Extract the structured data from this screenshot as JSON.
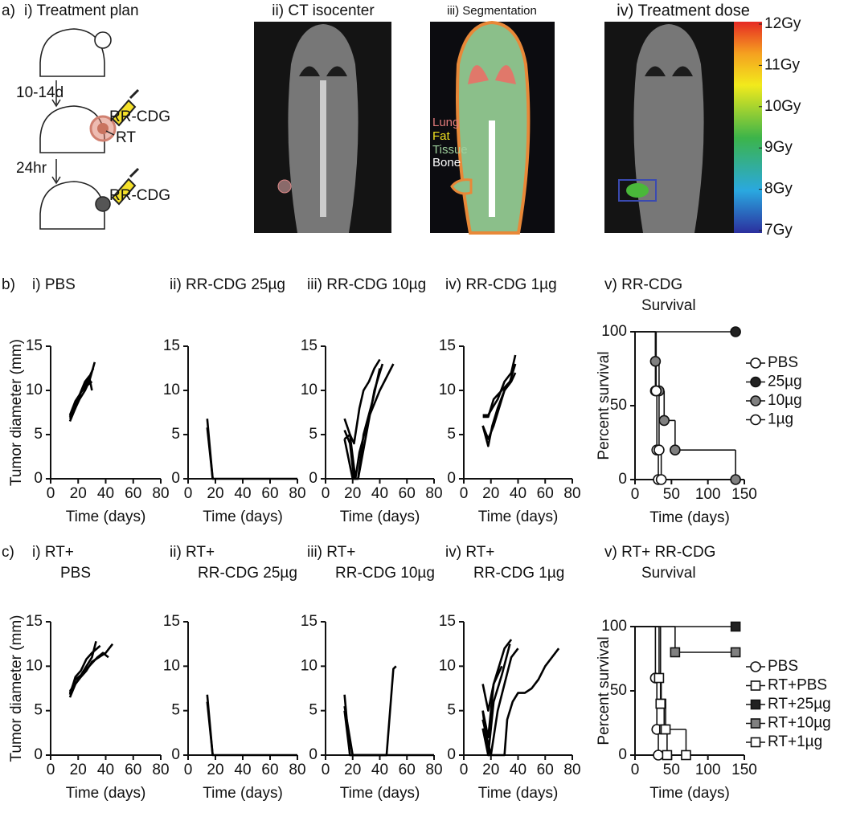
{
  "panel_a": {
    "label": "a)",
    "plan": {
      "title": "i) Treatment plan",
      "step1": "10-14d",
      "drug1": "RR-CDG",
      "rt": "RT",
      "step2": "24hr",
      "drug2": "RR-CDG"
    },
    "ct": {
      "title": "ii) CT isocenter"
    },
    "segmentation": {
      "title": "iii) Segmentation",
      "legend": [
        "Lung",
        "Fat",
        "Tissue",
        "Bone"
      ]
    },
    "dose": {
      "title": "iv) Treatment dose",
      "colorbar": {
        "lim": [
          7,
          12
        ],
        "ticks": [
          {
            "value": 12,
            "label": "12Gy"
          },
          {
            "value": 11,
            "label": "11Gy"
          },
          {
            "value": 10,
            "label": "10Gy"
          },
          {
            "value": 9,
            "label": "9Gy"
          },
          {
            "value": 8,
            "label": "8Gy"
          },
          {
            "value": 7,
            "label": "7Gy"
          }
        ]
      }
    }
  },
  "row_labels": [
    "b)",
    "c)"
  ],
  "chart_data": [
    {
      "type": "line",
      "title": [
        "i) PBS"
      ],
      "xlabel": "Time (days)",
      "ylabel": "Tumor diameter (mm)",
      "xlim": [
        0,
        80
      ],
      "xticks": [
        0,
        20,
        40,
        60,
        80
      ],
      "ylim": [
        0,
        15
      ],
      "yticks": [
        0,
        5,
        10,
        15
      ],
      "series": [
        {
          "color": "#000000",
          "x": [
            14,
            18,
            21,
            25,
            28,
            32
          ],
          "values": [
            6.5,
            8,
            9,
            10,
            11,
            13.2
          ]
        },
        {
          "color": "#000000",
          "x": [
            14,
            18,
            21,
            25,
            28,
            31
          ],
          "values": [
            7,
            8.5,
            9.5,
            10.5,
            11.5,
            12.5
          ]
        },
        {
          "color": "#000000",
          "x": [
            14,
            18,
            22,
            26,
            30
          ],
          "values": [
            6.8,
            8,
            9.8,
            10.5,
            11
          ]
        },
        {
          "color": "#000000",
          "x": [
            14,
            18,
            21,
            25,
            28,
            30
          ],
          "values": [
            7.2,
            8.8,
            9.5,
            11,
            11.6,
            10
          ]
        }
      ]
    },
    {
      "type": "line",
      "title": [
        "ii) RR-CDG 25µg"
      ],
      "xlabel": "Time (days)",
      "xlim": [
        0,
        80
      ],
      "xticks": [
        0,
        20,
        40,
        60,
        80
      ],
      "ylim": [
        0,
        15
      ],
      "yticks": [
        0,
        5,
        10,
        15
      ],
      "series": [
        {
          "color": "#000000",
          "x": [
            14,
            18,
            80
          ],
          "values": [
            6.8,
            0,
            0
          ]
        },
        {
          "color": "#000000",
          "x": [
            14,
            18
          ],
          "values": [
            5.8,
            0
          ]
        }
      ]
    },
    {
      "type": "line",
      "title": [
        "iii) RR-CDG 10µg"
      ],
      "xlabel": "Time (days)",
      "xlim": [
        0,
        80
      ],
      "xticks": [
        0,
        20,
        40,
        60,
        80
      ],
      "ylim": [
        0,
        15
      ],
      "yticks": [
        0,
        5,
        10,
        15
      ],
      "series": [
        {
          "color": "#000000",
          "x": [
            14,
            18,
            21,
            25,
            28,
            32,
            36,
            40
          ],
          "values": [
            6.8,
            5,
            4,
            8,
            10,
            11,
            12.5,
            13.5
          ]
        },
        {
          "color": "#000000",
          "x": [
            14,
            18,
            22,
            25,
            32,
            40,
            50
          ],
          "values": [
            4.5,
            5,
            0,
            3,
            7,
            10,
            13
          ]
        },
        {
          "color": "#000000",
          "x": [
            14,
            18,
            21,
            24,
            30,
            36,
            42
          ],
          "values": [
            5.5,
            4,
            0,
            0,
            5,
            10,
            13
          ]
        },
        {
          "color": "#000000",
          "x": [
            14,
            20,
            24,
            28,
            35,
            40
          ],
          "values": [
            4.5,
            0,
            0,
            5,
            9,
            12.5
          ]
        }
      ]
    },
    {
      "type": "line",
      "title": [
        "iv) RR-CDG 1µg"
      ],
      "xlabel": "Time (days)",
      "xlim": [
        0,
        80
      ],
      "xticks": [
        0,
        20,
        40,
        60,
        80
      ],
      "ylim": [
        0,
        15
      ],
      "yticks": [
        0,
        5,
        10,
        15
      ],
      "series": [
        {
          "color": "#000000",
          "x": [
            14,
            18,
            21,
            25,
            30,
            35,
            38
          ],
          "values": [
            7.2,
            7.2,
            8,
            9,
            11,
            12,
            14
          ]
        },
        {
          "color": "#000000",
          "x": [
            14,
            18,
            22,
            26,
            30,
            35,
            38
          ],
          "values": [
            6,
            4.5,
            6,
            8,
            10,
            11,
            12
          ]
        },
        {
          "color": "#000000",
          "x": [
            14,
            18,
            21,
            25,
            30,
            36
          ],
          "values": [
            6,
            3.7,
            6,
            8,
            10,
            11.5
          ]
        },
        {
          "color": "#000000",
          "x": [
            14,
            18,
            22,
            28,
            34,
            38
          ],
          "values": [
            7,
            7,
            9,
            10,
            11,
            13
          ]
        }
      ]
    },
    {
      "type": "survival",
      "title": [
        "v) RR-CDG",
        "Survival"
      ],
      "xlabel": "Time (days)",
      "ylabel": "Percent survival",
      "xlim": [
        0,
        150
      ],
      "xticks": [
        0,
        50,
        100,
        150
      ],
      "ylim": [
        0,
        100
      ],
      "yticks": [
        0,
        50,
        100
      ],
      "series": [
        {
          "name": "PBS",
          "marker": "circle",
          "color": "#ffffff",
          "x": [
            0,
            28,
            30,
            32
          ],
          "values": [
            100,
            60,
            20,
            0
          ]
        },
        {
          "name": "25µg",
          "marker": "circle",
          "color": "#222222",
          "x": [
            0,
            138
          ],
          "values": [
            100,
            100
          ]
        },
        {
          "name": "10µg",
          "marker": "circle",
          "color": "#808080",
          "x": [
            0,
            28,
            33,
            40,
            55,
            138
          ],
          "values": [
            100,
            80,
            60,
            40,
            20,
            0
          ]
        },
        {
          "name": "1µg",
          "marker": "circle",
          "color": "#ffffff",
          "x": [
            0,
            29,
            33,
            36
          ],
          "values": [
            100,
            60,
            20,
            0
          ]
        }
      ]
    },
    {
      "type": "line",
      "title": [
        "i) RT+",
        "PBS"
      ],
      "xlabel": "Time (days)",
      "ylabel": "Tumor diameter (mm)",
      "xlim": [
        0,
        80
      ],
      "xticks": [
        0,
        20,
        40,
        60,
        80
      ],
      "ylim": [
        0,
        15
      ],
      "yticks": [
        0,
        5,
        10,
        15
      ],
      "series": [
        {
          "color": "#000000",
          "x": [
            14,
            18,
            22,
            26,
            30,
            33
          ],
          "values": [
            7,
            8.5,
            9,
            10,
            11,
            12.8
          ]
        },
        {
          "color": "#000000",
          "x": [
            14,
            18,
            22,
            26,
            30,
            35,
            40,
            45
          ],
          "values": [
            6.5,
            8,
            8.8,
            9.5,
            10.5,
            11,
            11.5,
            12.5
          ]
        },
        {
          "color": "#000000",
          "x": [
            14,
            18,
            22,
            28,
            34,
            38,
            42
          ],
          "values": [
            7.2,
            8,
            9,
            10,
            11,
            11.5,
            11
          ]
        },
        {
          "color": "#000000",
          "x": [
            14,
            18,
            22,
            26,
            30,
            36
          ],
          "values": [
            6.8,
            8.8,
            9.5,
            10.8,
            11.5,
            12.3
          ]
        }
      ]
    },
    {
      "type": "line",
      "title": [
        "ii) RT+",
        "RR-CDG 25µg"
      ],
      "xlabel": "Time (days)",
      "xlim": [
        0,
        80
      ],
      "xticks": [
        0,
        20,
        40,
        60,
        80
      ],
      "ylim": [
        0,
        15
      ],
      "yticks": [
        0,
        5,
        10,
        15
      ],
      "series": [
        {
          "color": "#000000",
          "x": [
            14,
            18,
            80
          ],
          "values": [
            6.8,
            0,
            0
          ]
        },
        {
          "color": "#000000",
          "x": [
            14,
            18
          ],
          "values": [
            6,
            0
          ]
        }
      ]
    },
    {
      "type": "line",
      "title": [
        "iii) RT+",
        "RR-CDG 10µg"
      ],
      "xlabel": "Time (days)",
      "xlim": [
        0,
        80
      ],
      "xticks": [
        0,
        20,
        40,
        60,
        80
      ],
      "ylim": [
        0,
        15
      ],
      "yticks": [
        0,
        5,
        10,
        15
      ],
      "series": [
        {
          "color": "#000000",
          "x": [
            14,
            18,
            80
          ],
          "values": [
            6.8,
            0,
            0
          ]
        },
        {
          "color": "#000000",
          "x": [
            14,
            18,
            45,
            50,
            52
          ],
          "values": [
            5,
            0,
            0,
            9.7,
            10
          ]
        },
        {
          "color": "#000000",
          "x": [
            14,
            20,
            45
          ],
          "values": [
            5.5,
            0,
            0
          ]
        }
      ]
    },
    {
      "type": "line",
      "title": [
        "iv) RT+",
        "RR-CDG 1µg"
      ],
      "xlabel": "Time (days)",
      "xlim": [
        0,
        80
      ],
      "xticks": [
        0,
        20,
        40,
        60,
        80
      ],
      "ylim": [
        0,
        15
      ],
      "yticks": [
        0,
        5,
        10,
        15
      ],
      "series": [
        {
          "color": "#000000",
          "x": [
            14,
            18,
            22,
            26,
            30,
            35
          ],
          "values": [
            8,
            5,
            8,
            10,
            12,
            13
          ]
        },
        {
          "color": "#000000",
          "x": [
            14,
            18,
            22,
            28,
            34
          ],
          "values": [
            5,
            0,
            6,
            9,
            12.5
          ]
        },
        {
          "color": "#000000",
          "x": [
            14,
            20,
            25,
            30,
            35,
            40
          ],
          "values": [
            4,
            0,
            5,
            8,
            11,
            12
          ]
        },
        {
          "color": "#000000",
          "x": [
            14,
            18,
            30,
            32,
            36,
            40,
            45,
            50,
            55,
            60,
            65,
            70
          ],
          "values": [
            3,
            0,
            0,
            4,
            6,
            7,
            7,
            7.5,
            8.5,
            10,
            11,
            12
          ]
        },
        {
          "color": "#000000",
          "x": [
            14,
            18,
            22,
            28
          ],
          "values": [
            5,
            2,
            8,
            10
          ]
        }
      ]
    },
    {
      "type": "survival",
      "title": [
        "v) RT+ RR-CDG",
        "Survival"
      ],
      "xlabel": "Time (days)",
      "ylabel": "Percent survival",
      "xlim": [
        0,
        150
      ],
      "xticks": [
        0,
        50,
        100,
        150
      ],
      "ylim": [
        0,
        100
      ],
      "yticks": [
        0,
        50,
        100
      ],
      "series": [
        {
          "name": "PBS",
          "marker": "circle",
          "color": "#ffffff",
          "x": [
            0,
            28,
            30,
            32
          ],
          "values": [
            100,
            60,
            20,
            0
          ]
        },
        {
          "name": "RT+PBS",
          "marker": "square",
          "color": "#ffffff",
          "x": [
            0,
            33,
            36,
            40,
            44
          ],
          "values": [
            100,
            60,
            40,
            20,
            0
          ]
        },
        {
          "name": "RT+25µg",
          "marker": "square",
          "color": "#222222",
          "x": [
            0,
            138
          ],
          "values": [
            100,
            100
          ]
        },
        {
          "name": "RT+10µg",
          "marker": "square",
          "color": "#808080",
          "x": [
            0,
            55,
            138
          ],
          "values": [
            100,
            80,
            80
          ]
        },
        {
          "name": "RT+1µg",
          "marker": "square",
          "color": "#ffffff",
          "x": [
            0,
            35,
            42,
            70
          ],
          "values": [
            100,
            40,
            20,
            0
          ]
        }
      ]
    }
  ]
}
